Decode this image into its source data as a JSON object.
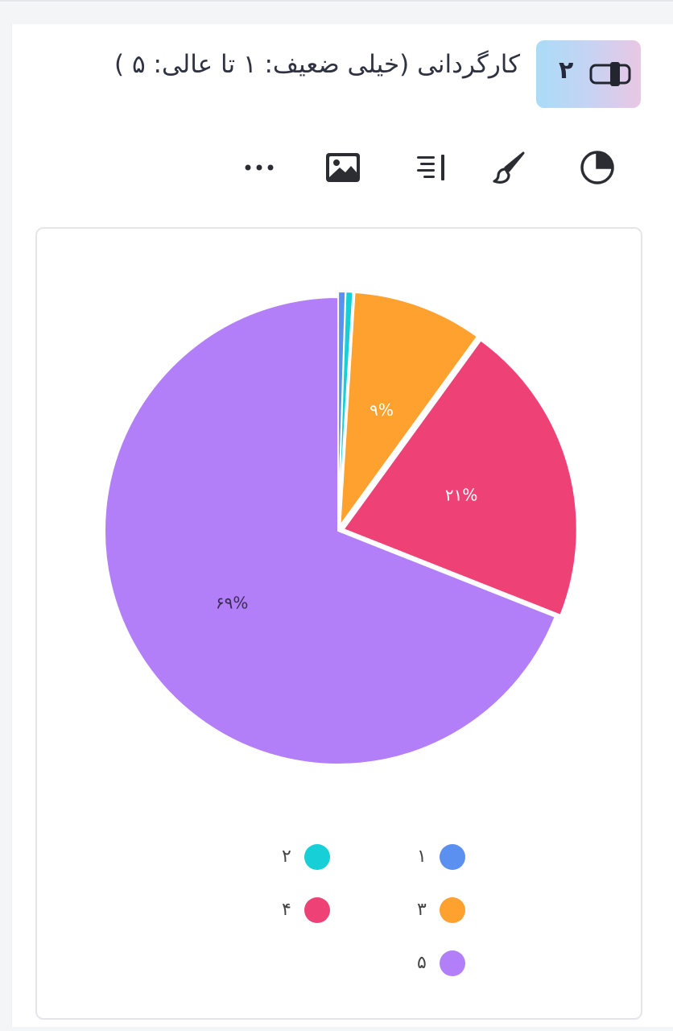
{
  "question": {
    "number": "۲",
    "title": "کارگردانی (خیلی ضعیف: ۱ تا عالی: ۵ )"
  },
  "toolbar": {
    "icons": [
      "pie-chart-icon",
      "brush-icon",
      "align-right-icon",
      "image-icon",
      "more-icon"
    ]
  },
  "colors": {
    "s1": "#5b8ff0",
    "s2": "#17cfd6",
    "s3": "#ffa12f",
    "s4": "#ee4276",
    "s5": "#b27ff8"
  },
  "chart_data": {
    "type": "pie",
    "slices": [
      {
        "label": "۱",
        "value": 0.5,
        "color": "#5b8ff0",
        "data_label": ""
      },
      {
        "label": "۲",
        "value": 0.5,
        "color": "#17cfd6",
        "data_label": ""
      },
      {
        "label": "۳",
        "value": 9,
        "color": "#ffa12f",
        "data_label": "۹%"
      },
      {
        "label": "۴",
        "value": 21,
        "color": "#ee4276",
        "data_label": "۲۱%"
      },
      {
        "label": "۵",
        "value": 69,
        "color": "#b27ff8",
        "data_label": "۶۹%"
      }
    ],
    "legend": [
      {
        "label": "۱",
        "color": "#5b8ff0"
      },
      {
        "label": "۲",
        "color": "#17cfd6"
      },
      {
        "label": "۳",
        "color": "#ffa12f"
      },
      {
        "label": "۴",
        "color": "#ee4276"
      },
      {
        "label": "۵",
        "color": "#b27ff8"
      }
    ],
    "legend_position": "bottom"
  }
}
